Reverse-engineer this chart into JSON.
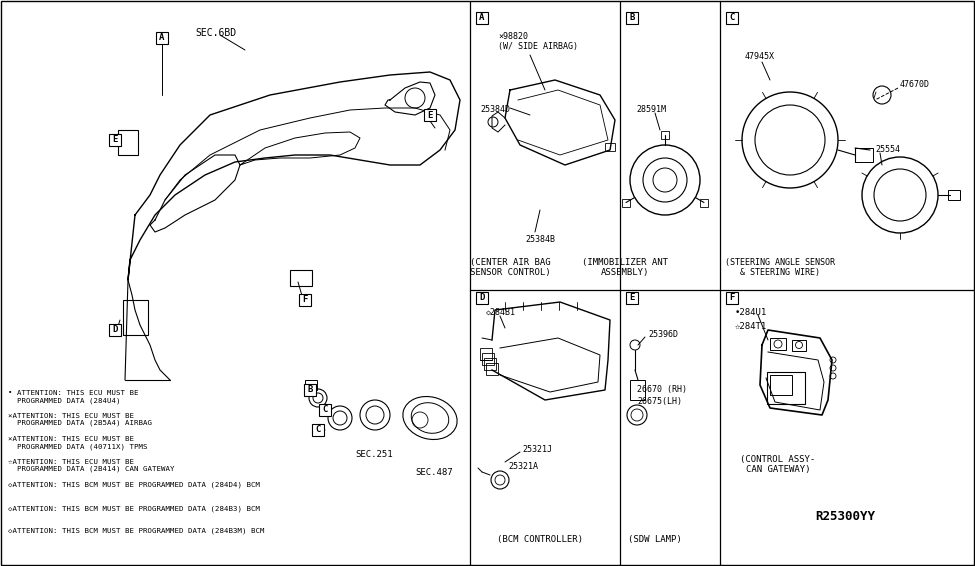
{
  "bg_color": "#ffffff",
  "line_color": "#000000",
  "fig_width": 9.75,
  "fig_height": 5.66,
  "dpi": 100,
  "annotations": {
    "sec_6bd": "SEC.6BD",
    "sec_251": "SEC.251",
    "sec_487": "SEC.487",
    "ref_num": "R25300YY",
    "part_center_airbag": "(CENTER AIR BAG\nSENSOR CONTROL)",
    "part_immobilizer": "(IMMOBILIZER ANT\nASSEMBLY)",
    "part_steering": "(STEERING ANGLE SENSOR\n& STEERING WIRE)",
    "part_bcm": "(BCM CONTROLLER)",
    "part_sdw": "(SDW LAMP)",
    "part_control": "(CONTROL ASSY-\nCAN GATEWAY)",
    "p98820": "×98820\n(W/ SIDE AIRBAG)",
    "p25384d": "25384D",
    "p25384b": "25384B",
    "p28591m": "28591M",
    "p47945x": "47945X",
    "p47670d": "47670D",
    "p25554": "25554",
    "p284b1": "◇284B1",
    "p25321j": "25321J",
    "p25321a": "25321A",
    "p25396d": "25396D",
    "p26670": "26670 (RH)",
    "p26675": "26675(LH)",
    "p284u1": "•284U1",
    "p284t1": "☆284T1",
    "att1": "• ATTENTION: THIS ECU MUST BE\n  PROGRAMMED DATA (284U4)",
    "att2": "×ATTENTION: THIS ECU MUST BE\n  PROGRAMMED DATA (2B5A4) AIRBAG",
    "att3": "×ATTENTION: THIS ECU MUST BE\n  PROGRAMMED DATA (40711X) TPMS",
    "att4": "☆ATTENTION: THIS ECU MUST BE\n  PROGRAMMED DATA (2B414) CAN GATEWAY",
    "att5": "◇ATTENTION: THIS BCM MUST BE PROGRAMMED DATA (284D4) BCM",
    "att6": "◇ATTENTION: THIS BCM MUST BE PROGRAMMED DATA (284B3) BCM",
    "att7": "◇ATTENTION: THIS BCM MUST BE PROGRAMMED DATA (284B3M) BCM"
  }
}
